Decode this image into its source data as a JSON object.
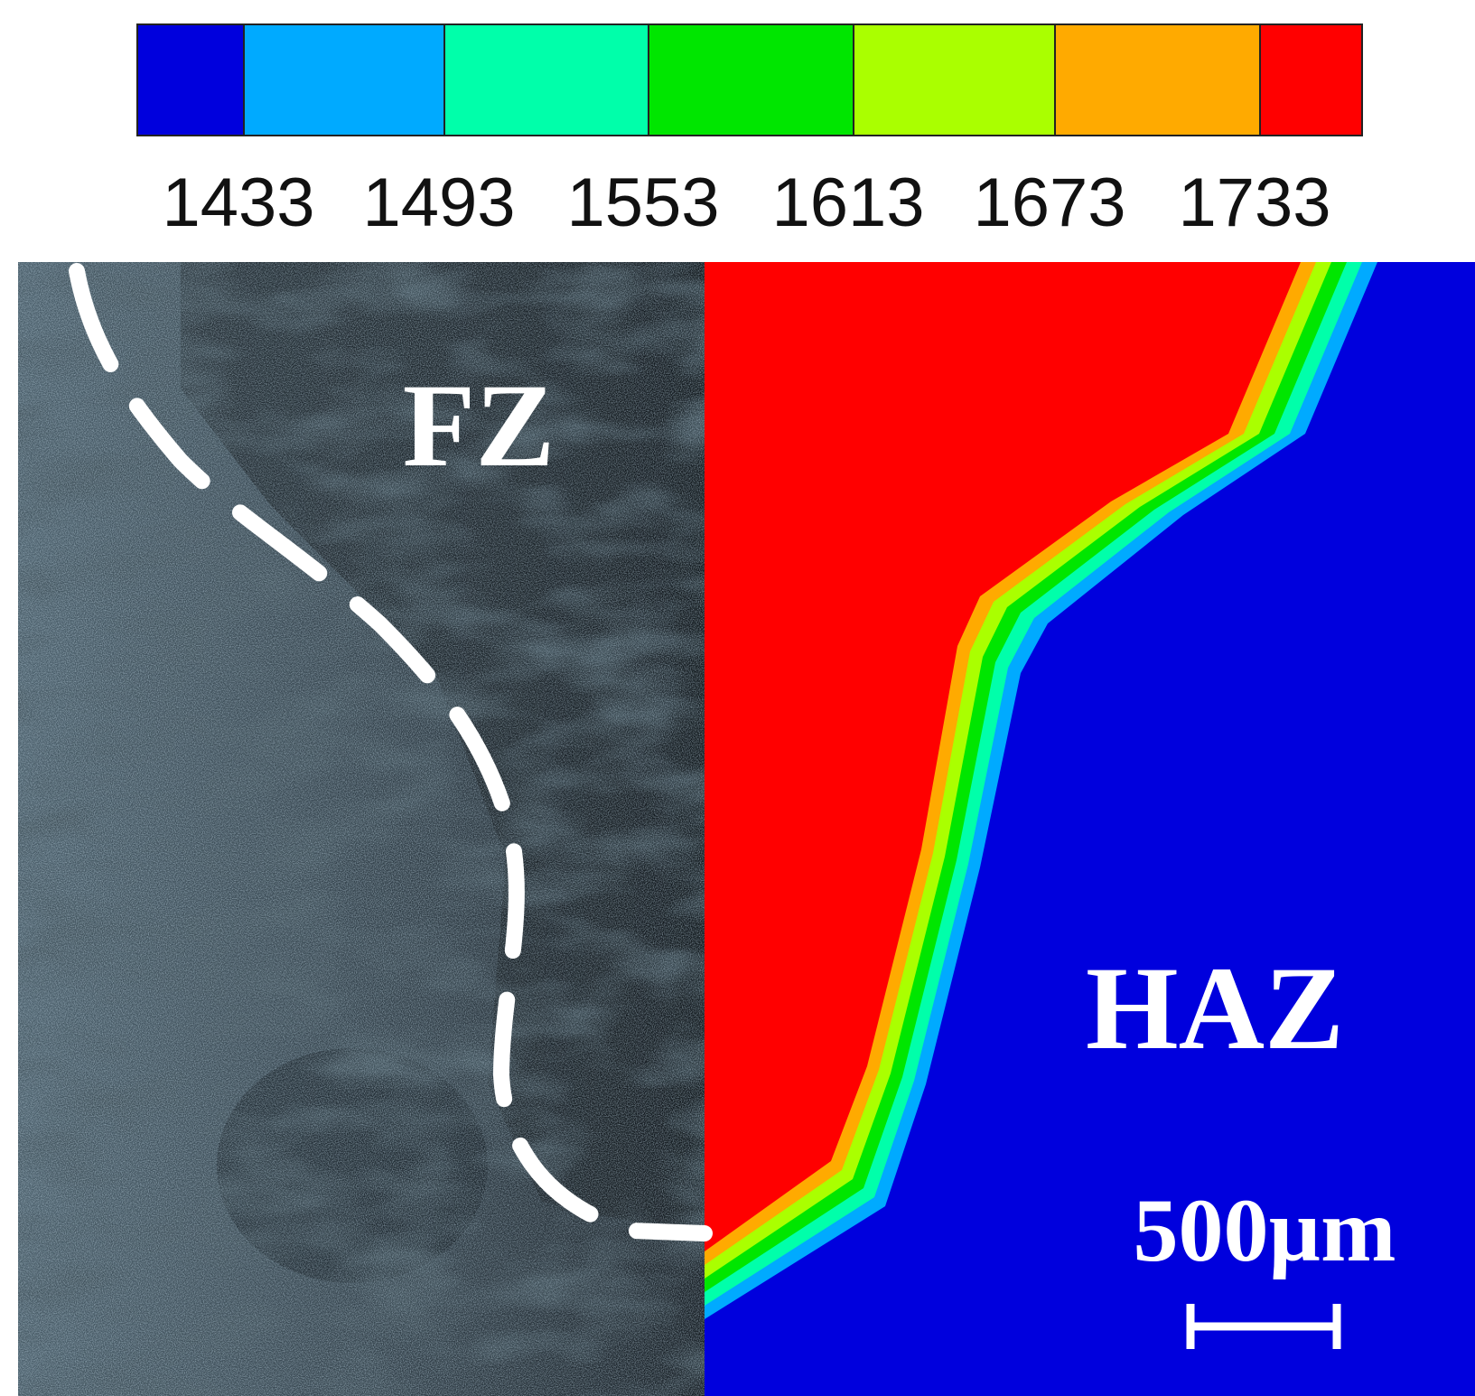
{
  "colorbar": {
    "colors": [
      "#0000dd",
      "#00aaff",
      "#00ffaa",
      "#00e600",
      "#aaff00",
      "#ffaa00",
      "#ff0000"
    ],
    "ticks": [
      1433,
      1493,
      1553,
      1613,
      1673,
      1733
    ]
  },
  "labels": {
    "fusion_zone": "FZ",
    "heat_affected_zone": "HAZ",
    "scale_bar": "500µm"
  }
}
